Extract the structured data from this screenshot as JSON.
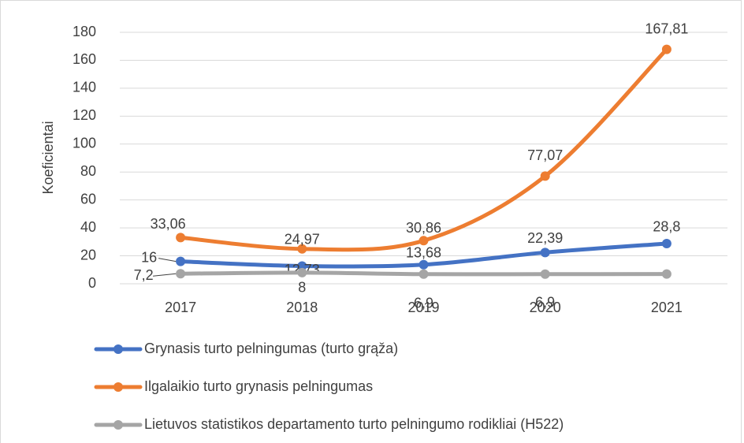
{
  "chart_data": {
    "type": "line",
    "y_label": "Koeficientai",
    "categories": [
      "2017",
      "2018",
      "2019",
      "2020",
      "2021"
    ],
    "series": [
      {
        "name": "Grynasis turto pelningumas (turto grąža)",
        "color": "#4472c4",
        "values": [
          16,
          12.73,
          13.68,
          22.39,
          28.8
        ],
        "value_labels": [
          "16",
          "12,73",
          "13,68",
          "22,39",
          "28,8"
        ]
      },
      {
        "name": "Ilgalaikio turto grynasis pelningumas",
        "color": "#ed7d31",
        "values": [
          33.06,
          24.97,
          30.86,
          77.07,
          167.81
        ],
        "value_labels": [
          "33,06",
          "24,97",
          "30,86",
          "77,07",
          "167,81"
        ]
      },
      {
        "name": "Lietuvos statistikos departamento turto pelningumo rodikliai (H522)",
        "color": "#a5a5a5",
        "values": [
          7.2,
          8,
          6.9,
          6.9,
          7
        ],
        "value_labels": [
          "7,2",
          "8",
          "6,9",
          "6,9",
          null
        ]
      }
    ],
    "ylim": [
      0,
      180
    ],
    "yticks": [
      0,
      20,
      40,
      60,
      80,
      100,
      120,
      140,
      160,
      180
    ],
    "grid": true,
    "legend": "bottom"
  }
}
